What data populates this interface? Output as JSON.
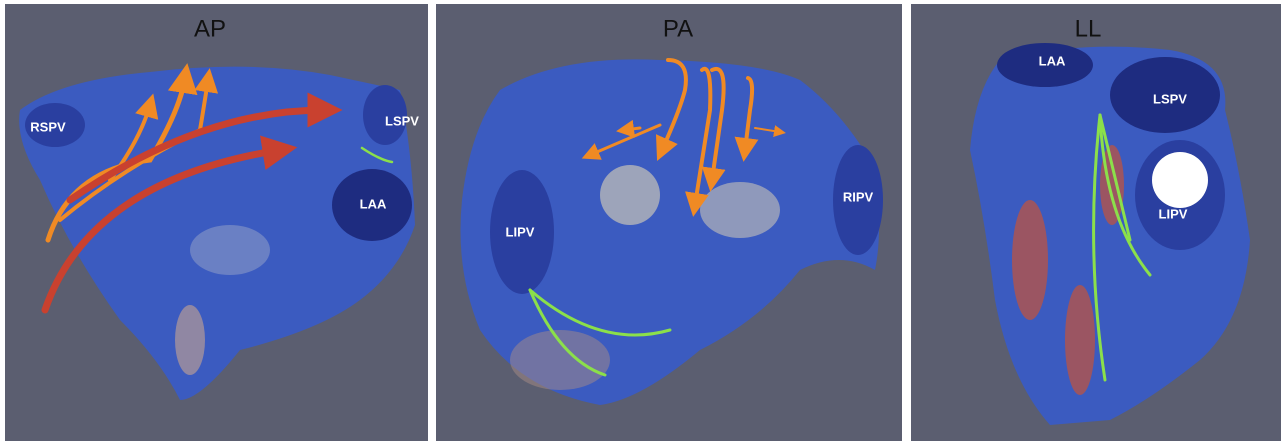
{
  "panels": [
    {
      "title": "AP",
      "labels": [
        "RSPV",
        "LSPV",
        "LAA"
      ]
    },
    {
      "title": "PA",
      "labels": [
        "LIPV",
        "RIPV"
      ]
    },
    {
      "title": "LL",
      "labels": [
        "LAA",
        "LSPV",
        "LIPV"
      ]
    }
  ]
}
